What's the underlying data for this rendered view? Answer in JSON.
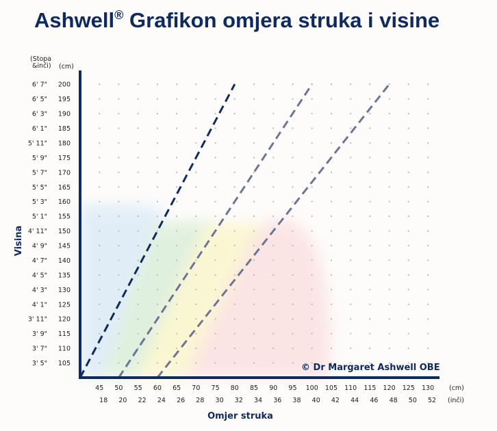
{
  "title_main": "Ashwell",
  "title_reg": "®",
  "title_rest": " Grafikon omjera struka i visine",
  "credit": "© Dr Margaret Ashwell OBE",
  "colors": {
    "title": "#0e2a63",
    "axis": "#0e2a63",
    "line_dark": "#0e2a63",
    "line_mid": "#6b7596",
    "grid_dot": "#b8b8b8",
    "zone_blue": "#dcebf7",
    "zone_green": "#dcefd9",
    "zone_yellow": "#fbf5cc",
    "zone_red": "#fbe1e1"
  },
  "chart_data": {
    "type": "line",
    "xlabel": "Omjer struka",
    "ylabel": "Visina",
    "x_unit_cm": "(cm)",
    "x_unit_in": "(inči)",
    "y_unit_ft": "(Stopa &inči)",
    "y_unit_cm": "(cm)",
    "x_ticks_cm": [
      "45",
      "50",
      "55",
      "60",
      "65",
      "70",
      "75",
      "80",
      "85",
      "90",
      "95",
      "100",
      "105",
      "110",
      "115",
      "120",
      "125",
      "130"
    ],
    "x_ticks_in": [
      "18",
      "20",
      "22",
      "24",
      "26",
      "28",
      "30",
      "32",
      "34",
      "36",
      "38",
      "40",
      "42",
      "44",
      "46",
      "48",
      "50",
      "52"
    ],
    "y_ticks_cm": [
      "200",
      "195",
      "190",
      "185",
      "180",
      "175",
      "170",
      "165",
      "160",
      "155",
      "150",
      "145",
      "140",
      "135",
      "130",
      "125",
      "120",
      "115",
      "110",
      "105"
    ],
    "y_ticks_ft": [
      "6' 7\"",
      "6' 5\"",
      "6' 3\"",
      "6' 1\"",
      "5' 11\"",
      "5' 9\"",
      "5' 7\"",
      "5' 5\"",
      "5' 3\"",
      "5' 1\"",
      "4' 11\"",
      "4' 9\"",
      "4' 7\"",
      "4' 5\"",
      "4' 3\"",
      "4' 1\"",
      "3' 11\"",
      "3' 9\"",
      "3' 7\"",
      "3' 5\""
    ],
    "xlim": [
      40,
      133
    ],
    "ylim": [
      100,
      204
    ],
    "grid": "dotted",
    "series": [
      {
        "points": [
          [
            40,
            100
          ],
          [
            80,
            200
          ]
        ],
        "style": "dashed-dark"
      },
      {
        "points": [
          [
            50,
            100
          ],
          [
            100,
            200
          ]
        ],
        "style": "dashed-mid"
      },
      {
        "points": [
          [
            60,
            100
          ],
          [
            120,
            200
          ]
        ],
        "style": "dashed-mid"
      }
    ]
  }
}
